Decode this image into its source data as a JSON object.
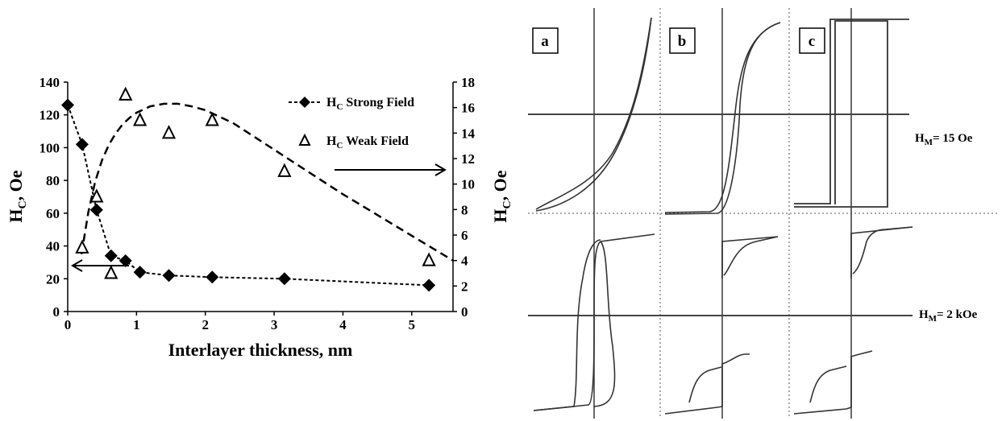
{
  "chart_data": [
    {
      "type": "scatter",
      "xlabel": "Interlayer thickness, nm",
      "ylabel_left": "H_C, Oe",
      "ylabel_right": "H_C, Oe",
      "xlim": [
        0,
        5.6
      ],
      "ylim_left": [
        0,
        140
      ],
      "ylim_right": [
        0,
        18
      ],
      "xticks": [
        "0",
        "1",
        "2",
        "3",
        "4",
        "5"
      ],
      "yticks_left": [
        "0",
        "20",
        "40",
        "60",
        "80",
        "100",
        "120",
        "140"
      ],
      "yticks_right": [
        "0",
        "2",
        "4",
        "6",
        "8",
        "10",
        "12",
        "14",
        "16",
        "18"
      ],
      "grid": false,
      "legend_position": "top-right",
      "series": [
        {
          "name": "H_C Strong Field",
          "legend_main": "H",
          "legend_sub": "C",
          "legend_rest": " Strong Field",
          "axis": "left",
          "marker": "filled-diamond",
          "line": "dotted",
          "x": [
            0,
            0.21,
            0.42,
            0.63,
            0.84,
            1.05,
            1.47,
            2.1,
            3.15,
            5.25
          ],
          "y": [
            126,
            102,
            62,
            34,
            31,
            24,
            22,
            21,
            20,
            16
          ]
        },
        {
          "name": "H_C Weak Field",
          "legend_main": "H",
          "legend_sub": "C",
          "legend_rest": " Weak Field",
          "axis": "right",
          "marker": "open-triangle",
          "line": "none",
          "x": [
            0.21,
            0.42,
            0.63,
            0.84,
            1.05,
            1.47,
            2.1,
            3.15,
            5.25
          ],
          "y": [
            5,
            9,
            3,
            17,
            15,
            14,
            15,
            11,
            4
          ]
        },
        {
          "name": "Weak field trend",
          "axis": "right",
          "marker": "none",
          "line": "dashed",
          "x": [
            0.2,
            0.3,
            0.4,
            0.5,
            0.6,
            0.7,
            0.8,
            0.9,
            1.0,
            1.2,
            1.4,
            1.6,
            1.8,
            2.0,
            2.4,
            2.8,
            3.2,
            3.6,
            4.0,
            4.4,
            4.8,
            5.2,
            5.6
          ],
          "y": [
            4.5,
            7.8,
            10.2,
            11.9,
            13.1,
            14.0,
            14.7,
            15.2,
            15.6,
            16.1,
            16.3,
            16.3,
            16.1,
            15.8,
            14.8,
            13.4,
            12.0,
            10.6,
            9.2,
            7.9,
            6.6,
            5.3,
            4.0
          ]
        }
      ],
      "annotations": [
        {
          "text": "arrow pointing to left axis",
          "target": "left"
        },
        {
          "text": "arrow pointing to right axis",
          "target": "right"
        }
      ]
    },
    {
      "type": "line",
      "panels": [
        {
          "label": "a"
        },
        {
          "label": "b"
        },
        {
          "label": "c"
        }
      ],
      "row_labels": [
        {
          "main": "H",
          "sub": "M",
          "rest": "= 15 Oe"
        },
        {
          "main": "H",
          "sub": "M",
          "rest": "= 2 kOe"
        }
      ]
    }
  ]
}
